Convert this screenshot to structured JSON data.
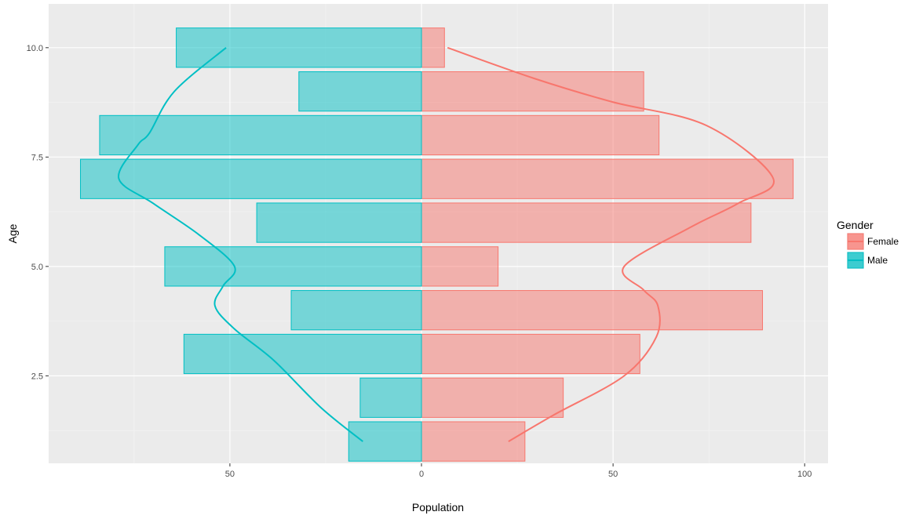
{
  "chart_data": {
    "type": "bar",
    "orientation": "horizontal",
    "title": "",
    "xlabel": "Population",
    "ylabel": "Age",
    "xlim": [
      -97.3,
      106.1
    ],
    "ylim": [
      0.5,
      11.0
    ],
    "x_ticks": [
      -50,
      0,
      50,
      100
    ],
    "x_tick_labels": [
      "50",
      "0",
      "50",
      "100"
    ],
    "y_ticks": [
      2.5,
      5.0,
      7.5,
      10.0
    ],
    "y_tick_labels": [
      "2.5",
      "5.0",
      "7.5",
      "10.0"
    ],
    "grid": true,
    "legend": {
      "title": "Gender",
      "position": "right"
    },
    "ages": [
      1,
      2,
      3,
      4,
      5,
      6,
      7,
      8,
      9,
      10
    ],
    "series": [
      {
        "name": "Female",
        "color": "#F8766D",
        "values": [
          27,
          37,
          57,
          89,
          20,
          86,
          97,
          62,
          58,
          6
        ],
        "smooth_line": [
          [
            1,
            22.7
          ],
          [
            1.6,
            34.4
          ],
          [
            2.5,
            52.9
          ],
          [
            3.39,
            61.3
          ],
          [
            4.1,
            61.7
          ],
          [
            4.46,
            58
          ],
          [
            5,
            52.9
          ],
          [
            5.9,
            70.3
          ],
          [
            6.44,
            82.6
          ],
          [
            7.01,
            91.8
          ],
          [
            8.22,
            74.4
          ],
          [
            8.76,
            49.8
          ],
          [
            9.3,
            29.3
          ],
          [
            10,
            6.8
          ]
        ]
      },
      {
        "name": "Male",
        "color": "#00BFC4",
        "values": [
          -19,
          -16,
          -62,
          -34,
          -67,
          -43,
          -89,
          -84,
          -32,
          -64
        ],
        "smooth_line": [
          [
            1,
            -15.3
          ],
          [
            1.77,
            -26.2
          ],
          [
            2.85,
            -38.5
          ],
          [
            3.57,
            -48.8
          ],
          [
            4.1,
            -53.9
          ],
          [
            4.55,
            -51.8
          ],
          [
            5,
            -48.8
          ],
          [
            5.72,
            -58
          ],
          [
            6.44,
            -70
          ],
          [
            7.01,
            -79
          ],
          [
            7.78,
            -74
          ],
          [
            8.05,
            -71
          ],
          [
            9,
            -64.5
          ],
          [
            10,
            -51
          ]
        ]
      }
    ]
  }
}
